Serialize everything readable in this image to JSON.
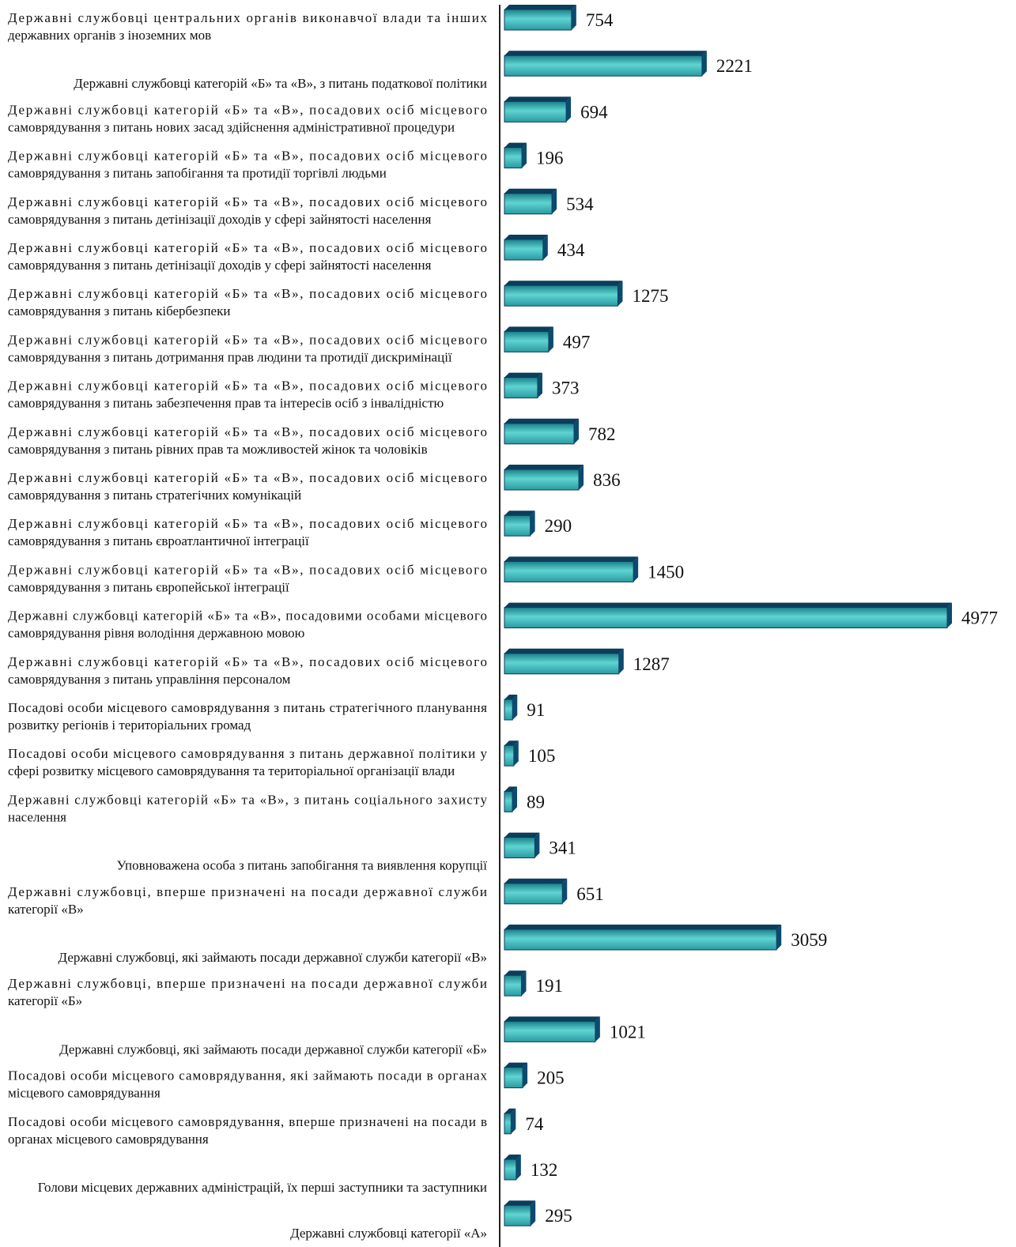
{
  "chart_data": {
    "type": "bar",
    "orientation": "horizontal",
    "title": "",
    "xlabel": "",
    "ylabel": "",
    "grid": false,
    "legend": "none",
    "xlim": [
      0,
      5000
    ],
    "categories": [
      [
        "Державні службовці центральних органів виконавчої влади та інших",
        "державних органів з іноземних мов"
      ],
      [
        "Державні службовці категорій «Б» та «В», з питань податкової політики"
      ],
      [
        "Державні службовці категорій «Б» та «В», посадових осіб місцевого",
        "самоврядування з питань нових засад здійснення адміністративної процедури"
      ],
      [
        "Державні службовці категорій «Б» та «В», посадових осіб місцевого",
        "самоврядування з питань запобігання та протидії торгівлі людьми"
      ],
      [
        "Державні службовці категорій «Б» та «В», посадових осіб місцевого",
        "самоврядування з питань детінізації доходів у сфері зайнятості населення"
      ],
      [
        "Державні службовці категорій «Б» та «В», посадових осіб місцевого",
        "самоврядування з питань детінізації доходів у сфері зайнятості населення"
      ],
      [
        "Державні службовці категорій «Б» та «В», посадових осіб місцевого",
        "самоврядування з питань кібербезпеки"
      ],
      [
        "Державні службовці категорій «Б» та «В», посадових осіб місцевого",
        "самоврядування з питань дотримання прав людини та протидії дискримінації"
      ],
      [
        "Державні службовці категорій «Б» та «В», посадових осіб місцевого",
        "самоврядування з питань забезпечення прав та інтересів осіб з інвалідністю"
      ],
      [
        "Державні службовці категорій «Б» та «В», посадових осіб місцевого",
        "самоврядування з питань рівних прав та можливостей жінок та чоловіків"
      ],
      [
        "Державні службовці категорій «Б» та «В», посадових осіб місцевого",
        "самоврядування з питань стратегічних комунікацій"
      ],
      [
        "Державні службовці категорій «Б» та «В», посадових осіб місцевого",
        "самоврядування з питань євроатлантичної інтеграції"
      ],
      [
        "Державні службовці категорій «Б» та «В», посадових осіб місцевого",
        "самоврядування з питань європейської інтеграції"
      ],
      [
        "Державні службовці категорій «Б» та «В», посадовими особами місцевого",
        "самоврядування рівня володіння державною мовою"
      ],
      [
        "Державні службовці категорій «Б» та «В», посадових осіб місцевого",
        "самоврядування з питань управління персоналом"
      ],
      [
        "Посадові особи місцевого самоврядування з питань стратегічного планування",
        "розвитку регіонів і територіальних громад"
      ],
      [
        "Посадові особи місцевого самоврядування з питань державної політики у",
        "сфері розвитку місцевого самоврядування та територіальної організації влади"
      ],
      [
        "Державні службовці категорій «Б» та «В», з питань соціального захисту",
        "населення"
      ],
      [
        "Уповноважена особа з питань запобігання та виявлення корупції"
      ],
      [
        "Державні службовці, вперше призначені на посади державної служби",
        "категорії «В»"
      ],
      [
        "Державні службовці, які займають посади державної служби категорії «В»"
      ],
      [
        "Державні службовці, вперше призначені на посади державної служби",
        "категорії «Б»"
      ],
      [
        "Державні службовці, які займають посади державної служби категорії «Б»"
      ],
      [
        "Посадові особи місцевого самоврядування, які займають посади в органах",
        "місцевого самоврядування"
      ],
      [
        "Посадові особи місцевого самоврядування, вперше призначені на посади в",
        "органах місцевого самоврядування"
      ],
      [
        "Голови місцевих державних адміністрацій, їх перші заступники та заступники"
      ],
      [
        "Державні службовці категорії «А»"
      ]
    ],
    "values": [
      754,
      2221,
      694,
      196,
      534,
      434,
      1275,
      497,
      373,
      782,
      836,
      290,
      1450,
      4977,
      1287,
      91,
      105,
      89,
      341,
      651,
      3059,
      191,
      1021,
      205,
      74,
      132,
      295
    ],
    "value_labels": [
      "754",
      "2221",
      "694",
      "196",
      "534",
      "434",
      "1275",
      "497",
      "373",
      "782",
      "836",
      "290",
      "1450",
      "4977",
      "1287",
      "91",
      "105",
      "89",
      "341",
      "651",
      "3059",
      "191",
      "1021",
      "205",
      "74",
      "132",
      "295"
    ],
    "colors": {
      "bar_top": "#1a7f88",
      "bar_mid": "#5fd4d2",
      "bar_bottom": "#2a9aa2",
      "bar_side": "#0d4a6e",
      "bar_edge": "#0b3d5c",
      "axis": "#222222",
      "text": "#111111"
    }
  }
}
